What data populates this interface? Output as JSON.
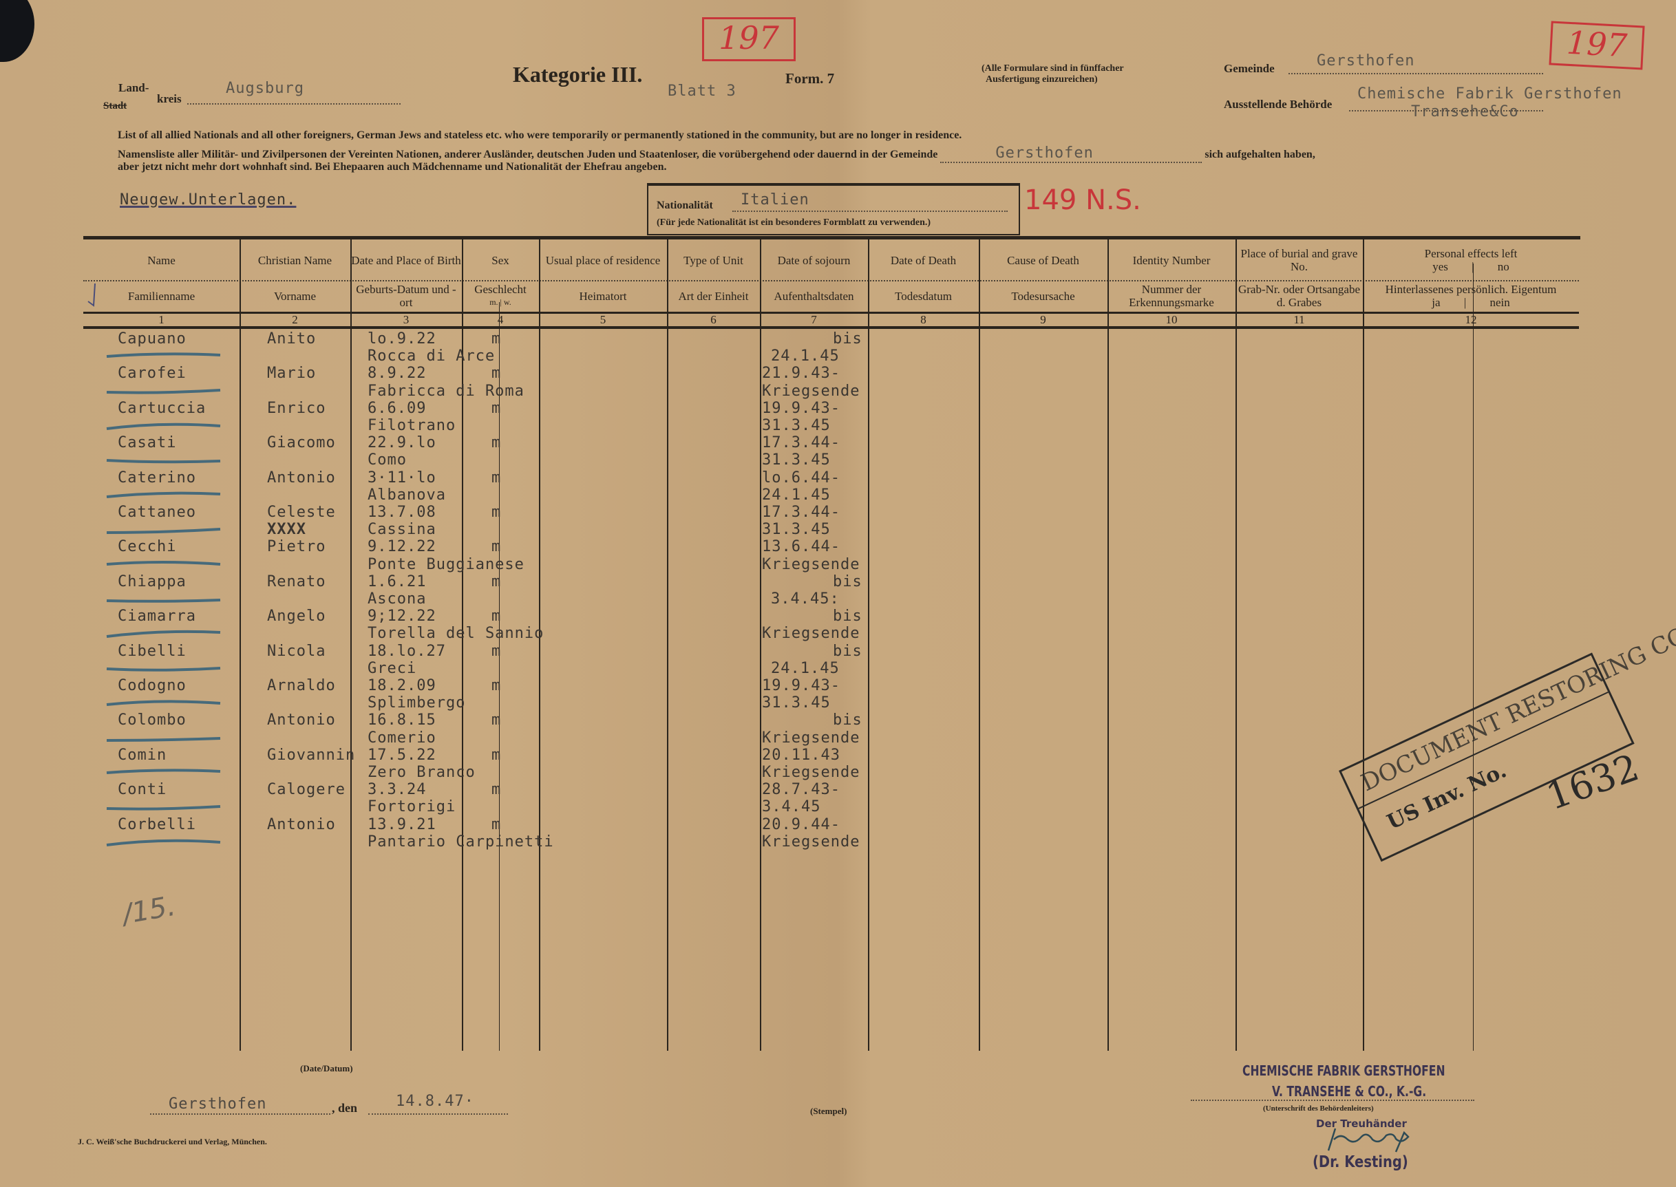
{
  "header": {
    "land_label": "Land-",
    "kreis_label": "kreis",
    "stadt_label": "Stadt",
    "landkreis_value": "Augsburg",
    "category_title": "Kategorie III.",
    "sheet": "Blatt 3",
    "form": "Form. 7",
    "note_line1": "(Alle Formulare sind in fünffacher",
    "note_line2": "Ausfertigung einzureichen)",
    "gemeinde_label": "Gemeinde",
    "gemeinde_value": "Gersthofen",
    "behoerde_label": "Ausstellende Behörde",
    "behoerde_value_line1": "Chemische Fabrik Gersthofen",
    "behoerde_value_line2": "Transehe&Co",
    "red_number_1": "197",
    "red_number_2": "197"
  },
  "intro": {
    "english": "List of all allied Nationals and all other foreigners, German Jews and stateless etc. who were temporarily or permanently stationed in the community, but are no longer in residence.",
    "german_before": "Namensliste aller Militär- und Zivilpersonen der Vereinten Nationen, anderer Ausländer, deutschen Juden und Staatenloser, die vorübergehend oder dauernd in der Gemeinde",
    "german_gemeinde": "Gersthofen",
    "german_after": "sich aufgehalten haben,",
    "german_line3": "aber jetzt nicht mehr dort wohnhaft sind. Bei Ehepaaren auch Mädchenname und Nationalität der Ehefrau angeben.",
    "reference": "Neugew.Unterlagen."
  },
  "nationality": {
    "label": "Nationalität",
    "value": "Italien",
    "note": "(Für jede Nationalität ist ein besonderes Formblatt zu verwenden.)",
    "handwritten": "149 N.S."
  },
  "columns": [
    {
      "en": "Name",
      "de": "Familienname",
      "num": "1"
    },
    {
      "en": "Christian Name",
      "de": "Vorname",
      "num": "2"
    },
    {
      "en": "Date and Place of Birth",
      "de": "Geburts-Datum und -ort",
      "num": "3"
    },
    {
      "en": "Sex",
      "de": "Geschlecht",
      "sub": "m.  |  w.",
      "num": "4"
    },
    {
      "en": "Usual place of residence",
      "de": "Heimatort",
      "num": "5"
    },
    {
      "en": "Type of Unit",
      "de": "Art der Einheit",
      "num": "6"
    },
    {
      "en": "Date of sojourn",
      "de": "Aufenthaltsdaten",
      "num": "7"
    },
    {
      "en": "Date of Death",
      "de": "Todesdatum",
      "num": "8"
    },
    {
      "en": "Cause of Death",
      "de": "Todesursache",
      "num": "9"
    },
    {
      "en": "Identity Number",
      "de": "Nummer der Erkennungsmarke",
      "num": "10"
    },
    {
      "en": "Place of burial and grave No.",
      "de": "Grab-Nr. oder Ortsangabe d. Grabes",
      "num": "11"
    },
    {
      "en": "Personal effects left",
      "en_sub": "yes   |   no",
      "de": "Hinterlassenes persönlich. Eigentum",
      "de_sub": "ja   |   nein",
      "num": "12"
    }
  ],
  "rows": [
    {
      "name": "Capuano",
      "vorname": "Anito",
      "birth_date": "lo.9.22",
      "birth_place": "Rocca di Arce",
      "sex": "m",
      "sojourn_1": "bis",
      "sojourn_2": "24.1.45"
    },
    {
      "name": "Carofei",
      "vorname": "Mario",
      "birth_date": "8.9.22",
      "birth_place": "Fabricca di Roma",
      "sex": "m",
      "sojourn_1": "21.9.43-",
      "sojourn_2": "Kriegsende"
    },
    {
      "name": "Cartuccia",
      "vorname": "Enrico",
      "birth_date": "6.6.09",
      "birth_place": "Filotrano",
      "sex": "m",
      "sojourn_1": "19.9.43-",
      "sojourn_2": "31.3.45"
    },
    {
      "name": "Casati",
      "vorname": "Giacomo",
      "birth_date": "22.9.lo",
      "birth_place": "Como",
      "sex": "m",
      "sojourn_1": "17.3.44-",
      "sojourn_2": "31.3.45"
    },
    {
      "name": "Caterino",
      "vorname": "Antonio",
      "birth_date": "3·11·lo",
      "birth_place": "Albanova",
      "sex": "m",
      "sojourn_1": "lo.6.44-",
      "sojourn_2": "24.1.45"
    },
    {
      "name": "Cattaneo",
      "vorname": "Celeste",
      "vorname_2": "XXXX",
      "birth_date": "13.7.08",
      "birth_place": "Cassina",
      "sex": "m",
      "sojourn_1": "17.3.44-",
      "sojourn_2": "31.3.45"
    },
    {
      "name": "Cecchi",
      "vorname": "Pietro",
      "birth_date": "9.12.22",
      "birth_place": "Ponte Buggianese",
      "sex": "m",
      "sojourn_1": "13.6.44-",
      "sojourn_2": "Kriegsende"
    },
    {
      "name": "Chiappa",
      "vorname": "Renato",
      "birth_date": "1.6.21",
      "birth_place": "Ascona",
      "sex": "m",
      "sojourn_1": "bis",
      "sojourn_2": "3.4.45:"
    },
    {
      "name": "Ciamarra",
      "vorname": "Angelo",
      "birth_date": "9;12.22",
      "birth_place": "Torella del Sannio",
      "sex": "m",
      "sojourn_1": "bis",
      "sojourn_2": "Kriegsende"
    },
    {
      "name": "Cibelli",
      "vorname": "Nicola",
      "birth_date": "18.lo.27",
      "birth_place": "Greci",
      "sex": "m",
      "sojourn_1": "bis",
      "sojourn_2": "24.1.45"
    },
    {
      "name": "Codogno",
      "vorname": "Arnaldo",
      "birth_date": "18.2.09",
      "birth_place": "Splimbergo",
      "sex": "m",
      "sojourn_1": "19.9.43-",
      "sojourn_2": "31.3.45"
    },
    {
      "name": "Colombo",
      "vorname": "Antonio",
      "birth_date": "16.8.15",
      "birth_place": "Comerio",
      "sex": "m",
      "sojourn_1": "bis",
      "sojourn_2": "Kriegsende"
    },
    {
      "name": "Comin",
      "vorname": "Giovannin",
      "birth_date": "17.5.22",
      "birth_place": "Zero Branco",
      "sex": "m",
      "sojourn_1": "20.11.43",
      "sojourn_2": "Kriegsende"
    },
    {
      "name": "Conti",
      "vorname": "Calogere",
      "birth_date": "3.3.24",
      "birth_place": "Fortorigi",
      "sex": "m",
      "sojourn_1": "28.7.43-",
      "sojourn_2": "3.4.45"
    },
    {
      "name": "Corbelli",
      "vorname": "Antonio",
      "birth_date": "13.9.21",
      "birth_place": "Pantario Carpinetti",
      "sex": "m",
      "sojourn_1": "20.9.44-",
      "sojourn_2": "Kriegsende"
    }
  ],
  "count_note": "/15.",
  "footer": {
    "date_label": "(Date/Datum)",
    "place": "Gersthofen",
    "den": ", den",
    "date": "14.8.47·",
    "stamp_label": "(Stempel)",
    "printer": "J. C. Weiß'sche Buchdruckerei und Verlag, München.",
    "company_line1": "CHEMISCHE FABRIK GERSTHOFEN",
    "company_line2": "V. TRANSEHE & CO., K.-G.",
    "signature_label": "(Unterschrift des Behördenleiters)",
    "trustee": "Der Treuhänder",
    "signer": "(Dr. Kesting)"
  },
  "archive_stamp": {
    "line1": "DOCUMENT RESTORING COPY",
    "line2": "US Inv. No.",
    "number": "1632"
  },
  "colors": {
    "paper": "#c3a47b",
    "red_ink": "#c8363a",
    "blue_pencil": "#2f5f7a",
    "ink": "#2a241d"
  }
}
